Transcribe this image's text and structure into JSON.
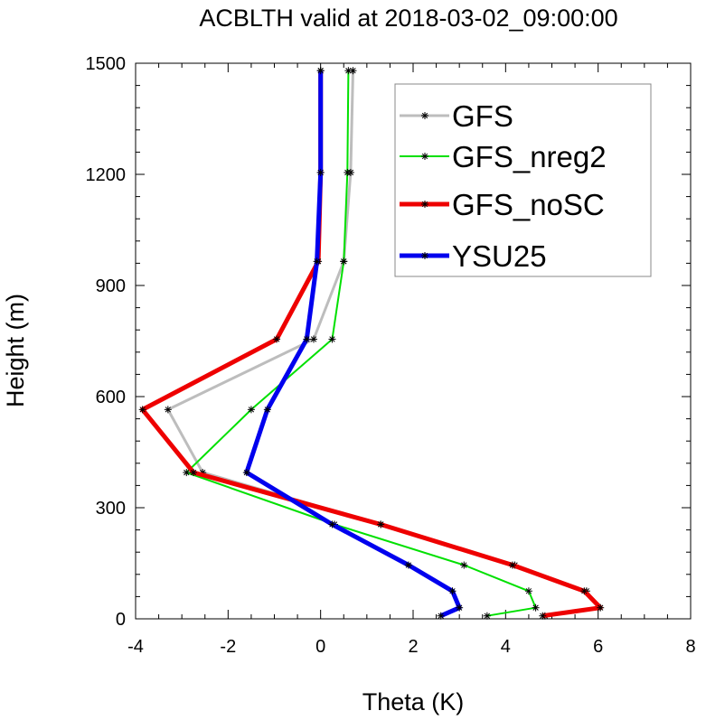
{
  "chart_data": {
    "type": "line",
    "title": "ACBLTH valid at 2018-03-02_09:00:00",
    "xlabel": "Theta (K)",
    "ylabel": "Height (m)",
    "xlim": [
      -4,
      8
    ],
    "ylim": [
      0,
      1500
    ],
    "xticks": [
      "-4",
      "-2",
      "0",
      "2",
      "4",
      "6",
      "8"
    ],
    "yticks": [
      "0",
      "300",
      "600",
      "900",
      "1200",
      "1500"
    ],
    "grid": false,
    "legend_position": "top-right",
    "series": [
      {
        "name": "GFS",
        "color": "#bdbdbd",
        "x": [
          4.85,
          6.0,
          5.75,
          4.2,
          1.3,
          -2.55,
          -3.3,
          -0.15,
          0.5,
          0.65,
          0.7
        ],
        "y": [
          8,
          30,
          75,
          145,
          255,
          395,
          565,
          755,
          965,
          1205,
          1480
        ]
      },
      {
        "name": "GFS_nreg2",
        "color": "#00e000",
        "x": [
          3.6,
          4.65,
          4.5,
          3.1,
          0.3,
          -2.9,
          -1.5,
          0.25,
          0.5,
          0.58,
          0.6
        ],
        "y": [
          8,
          30,
          75,
          145,
          255,
          395,
          565,
          755,
          965,
          1205,
          1480
        ]
      },
      {
        "name": "GFS_noSC",
        "color": "#ee0000",
        "x": [
          4.8,
          6.05,
          5.7,
          4.15,
          1.3,
          -2.75,
          -3.85,
          -0.95,
          -0.05,
          0.0,
          0.0
        ],
        "y": [
          8,
          30,
          75,
          145,
          255,
          395,
          565,
          755,
          965,
          1205,
          1480
        ]
      },
      {
        "name": "YSU25",
        "color": "#0000ee",
        "x": [
          2.6,
          3.0,
          2.85,
          1.9,
          0.25,
          -1.6,
          -1.15,
          -0.3,
          -0.08,
          0.0,
          0.0
        ],
        "y": [
          8,
          30,
          75,
          145,
          255,
          395,
          565,
          755,
          965,
          1205,
          1480
        ]
      }
    ]
  }
}
